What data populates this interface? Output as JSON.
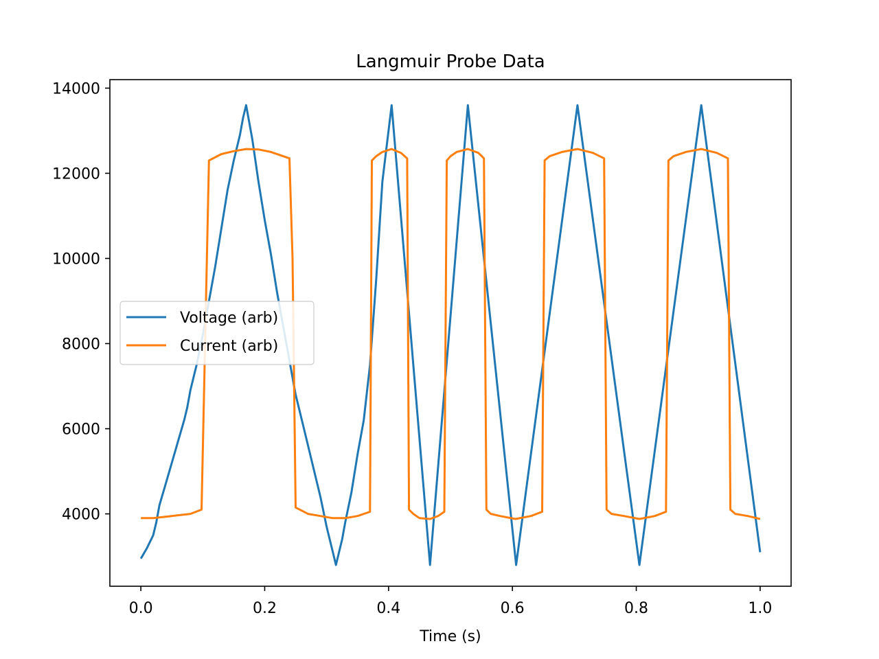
{
  "chart_data": {
    "type": "line",
    "title": "Langmuir Probe Data",
    "xlabel": "Time (s)",
    "ylabel": "",
    "xlim": [
      -0.05,
      1.05
    ],
    "ylim": [
      2300,
      14200
    ],
    "xticks": [
      0.0,
      0.2,
      0.4,
      0.6,
      0.8,
      1.0
    ],
    "xtick_labels": [
      "0.0",
      "0.2",
      "0.4",
      "0.6",
      "0.8",
      "1.0"
    ],
    "yticks": [
      4000,
      6000,
      8000,
      10000,
      12000,
      14000
    ],
    "ytick_labels": [
      "4000",
      "6000",
      "8000",
      "10000",
      "12000",
      "14000"
    ],
    "grid": false,
    "legend_position": "center-left",
    "series": [
      {
        "name": "Voltage (arb)",
        "color": "#1f77b4",
        "x": [
          0.0,
          0.01,
          0.02,
          0.025,
          0.03,
          0.04,
          0.05,
          0.06,
          0.07,
          0.075,
          0.08,
          0.09,
          0.1,
          0.11,
          0.12,
          0.13,
          0.14,
          0.15,
          0.16,
          0.165,
          0.17,
          0.175,
          0.18,
          0.19,
          0.2,
          0.21,
          0.22,
          0.23,
          0.24,
          0.25,
          0.26,
          0.27,
          0.28,
          0.29,
          0.3,
          0.31,
          0.315,
          0.32,
          0.325,
          0.33,
          0.34,
          0.35,
          0.36,
          0.37,
          0.38,
          0.39,
          0.405,
          0.467,
          0.528,
          0.606,
          0.705,
          0.805,
          0.905,
          1.0
        ],
        "y": [
          2950,
          3200,
          3500,
          3800,
          4200,
          4700,
          5200,
          5700,
          6200,
          6500,
          6900,
          7500,
          8200,
          9000,
          9800,
          10700,
          11600,
          12300,
          12900,
          13300,
          13600,
          13200,
          12800,
          11800,
          10900,
          10100,
          9200,
          8400,
          7600,
          6800,
          6200,
          5600,
          5000,
          4400,
          3700,
          3100,
          2800,
          3100,
          3400,
          3800,
          4500,
          5400,
          6200,
          7500,
          9500,
          11800,
          13600,
          2800,
          13600,
          2800,
          13600,
          2800,
          13600,
          3100
        ]
      },
      {
        "name": "Current (arb)",
        "color": "#ff7f0e",
        "x": [
          0.0,
          0.02,
          0.05,
          0.08,
          0.098,
          0.11,
          0.13,
          0.15,
          0.17,
          0.19,
          0.21,
          0.23,
          0.24,
          0.245,
          0.25,
          0.27,
          0.29,
          0.31,
          0.33,
          0.35,
          0.37,
          0.373,
          0.38,
          0.39,
          0.405,
          0.42,
          0.43,
          0.433,
          0.44,
          0.45,
          0.467,
          0.48,
          0.49,
          0.494,
          0.5,
          0.51,
          0.528,
          0.545,
          0.554,
          0.558,
          0.565,
          0.58,
          0.605,
          0.63,
          0.648,
          0.652,
          0.66,
          0.68,
          0.705,
          0.73,
          0.748,
          0.752,
          0.76,
          0.78,
          0.805,
          0.83,
          0.848,
          0.852,
          0.86,
          0.88,
          0.905,
          0.93,
          0.948,
          0.952,
          0.96,
          0.98,
          1.0
        ],
        "y": [
          3900,
          3900,
          3950,
          4000,
          4100,
          12300,
          12450,
          12520,
          12570,
          12560,
          12500,
          12400,
          12350,
          10000,
          4150,
          4000,
          3950,
          3900,
          3900,
          3950,
          4050,
          12300,
          12400,
          12500,
          12570,
          12480,
          12350,
          4100,
          4000,
          3900,
          3880,
          3950,
          4050,
          12300,
          12400,
          12500,
          12570,
          12480,
          12350,
          4100,
          4000,
          3950,
          3880,
          3950,
          4050,
          12300,
          12400,
          12500,
          12570,
          12480,
          12350,
          4100,
          4000,
          3950,
          3880,
          3950,
          4050,
          12300,
          12400,
          12500,
          12570,
          12480,
          12350,
          4100,
          4000,
          3950,
          3880
        ]
      }
    ]
  }
}
